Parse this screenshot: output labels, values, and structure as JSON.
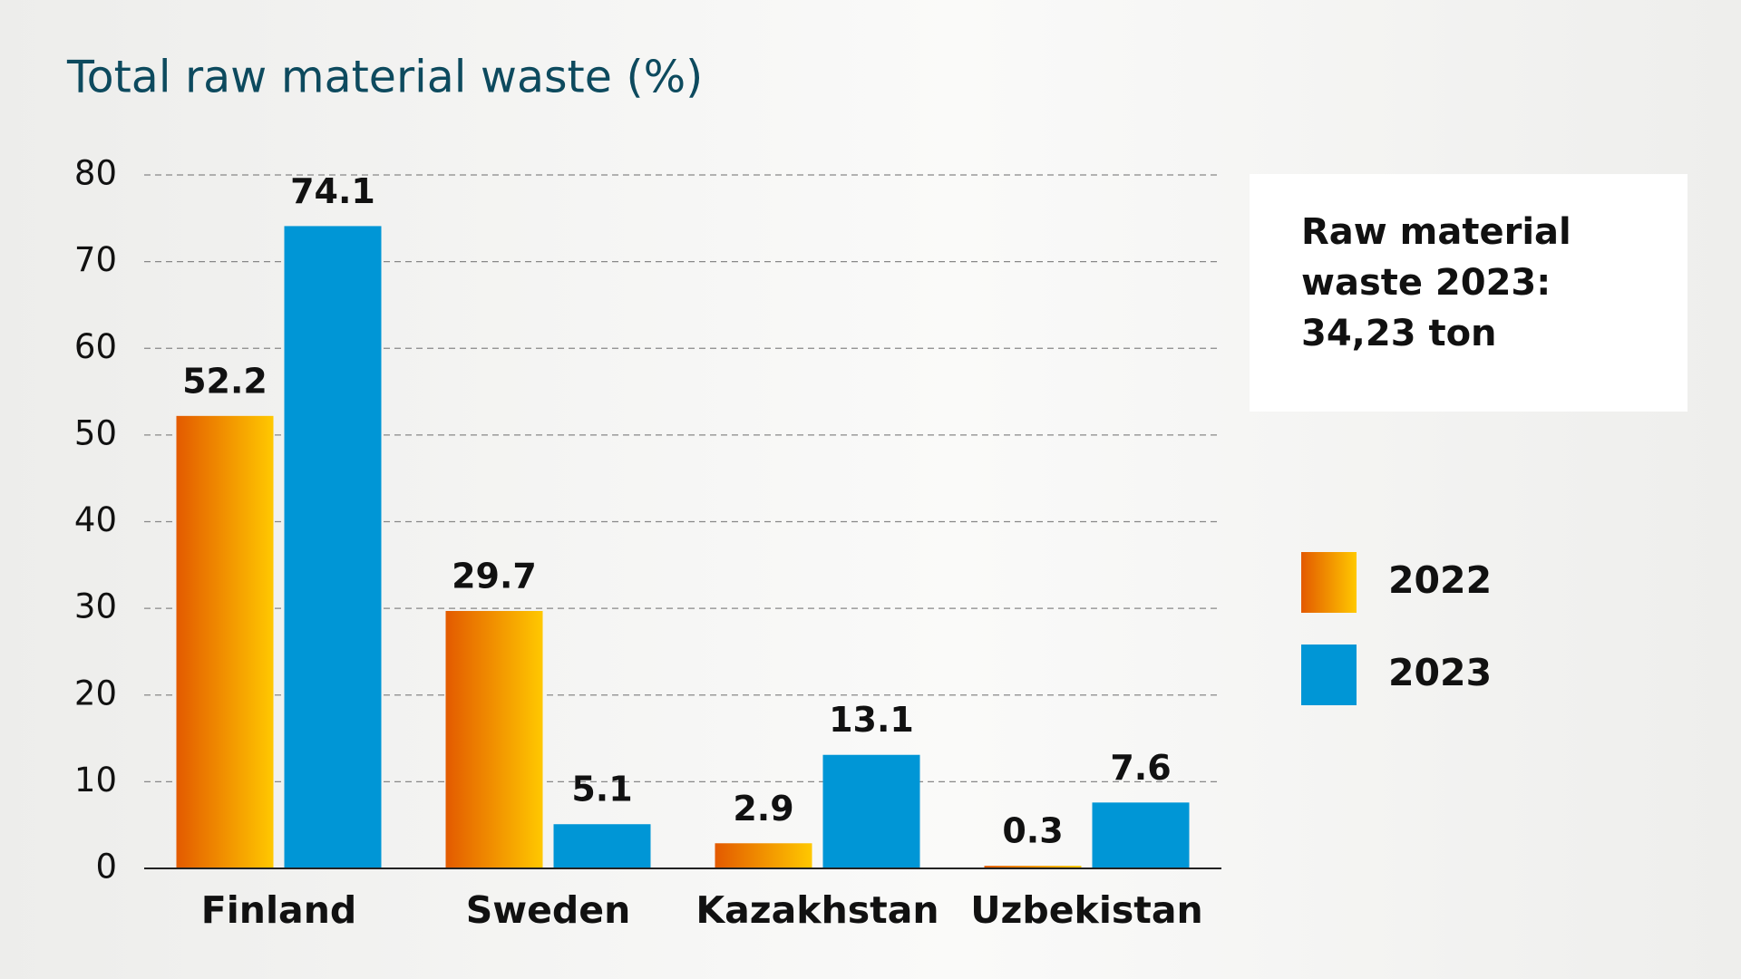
{
  "chart_data": {
    "type": "bar",
    "title": "Total raw material waste (%)",
    "categories": [
      "Finland",
      "Sweden",
      "Kazakhstan",
      "Uzbekistan"
    ],
    "series": [
      {
        "name": "2022",
        "color": [
          "#e35a00",
          "#ffc800"
        ],
        "values": [
          52.2,
          29.7,
          2.9,
          0.3
        ]
      },
      {
        "name": "2023",
        "color": "#0096d6",
        "values": [
          74.1,
          5.1,
          13.1,
          7.6
        ]
      }
    ],
    "ylim": [
      0,
      80
    ],
    "yticks": [
      0,
      10,
      20,
      30,
      40,
      50,
      60,
      70,
      80
    ],
    "grid": true,
    "legend": "right",
    "annotation": "Raw material waste 2023: 34,23 ton"
  }
}
